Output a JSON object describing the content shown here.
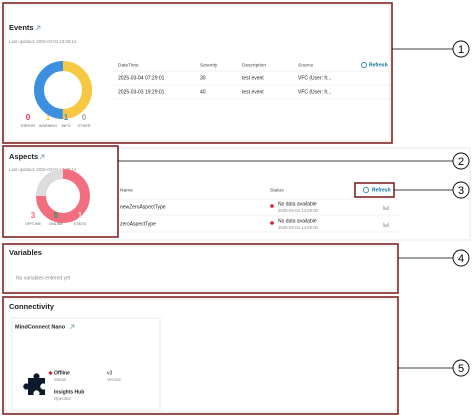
{
  "events": {
    "title": "Events",
    "last_updated": "Last updated: 2025-03-04 13:29:14",
    "summary": [
      {
        "label": "ERROR",
        "value": 0,
        "color": "#e5334b"
      },
      {
        "label": "WARNING",
        "value": 1,
        "color": "#f7c843"
      },
      {
        "label": "INFO",
        "value": 1,
        "color": "#3d8fe0"
      },
      {
        "label": "OTHER",
        "value": 0,
        "color": "#a8a8a8"
      }
    ],
    "refresh": "Refresh",
    "table": {
      "headers": [
        "DateTime",
        "Severity",
        "Description",
        "Source"
      ],
      "rows": [
        [
          "2025-03-04 07:29:01",
          30,
          "test event",
          "VFC (User: fr..."
        ],
        [
          "2025-03-03 19:29:01",
          40,
          "test event",
          "VFC (User: fr..."
        ]
      ]
    }
  },
  "aspects": {
    "title": "Aspects",
    "last_updated": "Last updated: 2025-03-04 14:29:14",
    "summary": [
      {
        "label": "OFFLINE",
        "value": 3,
        "color": "#f26d7d"
      },
      {
        "label": "ONLINE",
        "value": 0,
        "color": "#2a9a5a"
      },
      {
        "label": "STATIC",
        "value": 1,
        "color": "#dcdcdc"
      }
    ],
    "refresh": "Refresh",
    "table": {
      "headers": [
        "Name",
        "Status"
      ],
      "rows": [
        {
          "name": "newZeroAspectType",
          "status": "No data available",
          "time": "2025-03-04 14:29:00"
        },
        {
          "name": "zeroAspectType",
          "status": "No data available",
          "time": "2025-03-04 14:29:00"
        }
      ]
    }
  },
  "variables": {
    "title": "Variables",
    "message": "No variables entered yet"
  },
  "connectivity": {
    "title": "Connectivity",
    "device": {
      "name": "MindConnect Nano",
      "status": "Offline",
      "status_label": "Status",
      "version": "v3",
      "version_label": "Version",
      "operator": "Insights Hub",
      "operator_label": "Operator"
    }
  },
  "callouts": [
    "1",
    "2",
    "3",
    "4",
    "5"
  ]
}
